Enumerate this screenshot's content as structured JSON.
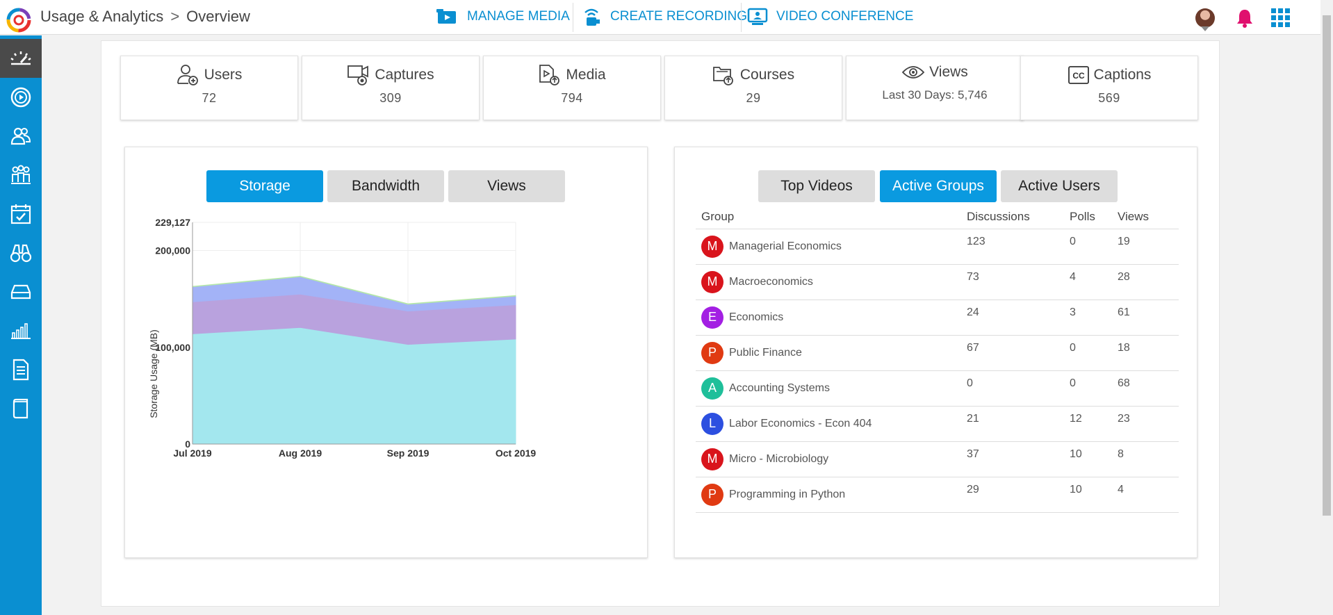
{
  "header": {
    "breadcrumb": [
      "Usage & Analytics",
      "Overview"
    ],
    "actions": [
      {
        "label": "MANAGE MEDIA",
        "icon": "media-icon"
      },
      {
        "label": "CREATE RECORDING",
        "icon": "recording-icon"
      },
      {
        "label": "VIDEO CONFERENCE",
        "icon": "video-conference-icon"
      }
    ]
  },
  "stats": [
    {
      "label": "Users",
      "value": "72",
      "icon": "user-add-icon"
    },
    {
      "label": "Captures",
      "value": "309",
      "icon": "capture-icon"
    },
    {
      "label": "Media",
      "value": "794",
      "icon": "media-file-icon"
    },
    {
      "label": "Courses",
      "value": "29",
      "icon": "courses-icon"
    },
    {
      "label": "Views",
      "value": "Last 30 Days: 5,746",
      "icon": "eye-icon"
    },
    {
      "label": "Captions",
      "value": "569",
      "icon": "cc-icon"
    }
  ],
  "usage_tabs": [
    {
      "label": "Storage",
      "active": true
    },
    {
      "label": "Bandwidth",
      "active": false
    },
    {
      "label": "Views",
      "active": false
    }
  ],
  "activity_tabs": [
    {
      "label": "Top Videos",
      "active": false
    },
    {
      "label": "Active Groups",
      "active": true
    },
    {
      "label": "Active Users",
      "active": false
    }
  ],
  "groups": {
    "columns": [
      "Group",
      "Discussions",
      "Polls",
      "Views"
    ],
    "rows": [
      {
        "initial": "M",
        "color": "#d9141c",
        "name": "Managerial Economics",
        "discussions": "123",
        "polls": "0",
        "views": "19"
      },
      {
        "initial": "M",
        "color": "#d9141c",
        "name": "Macroeconomics",
        "discussions": "73",
        "polls": "4",
        "views": "28"
      },
      {
        "initial": "E",
        "color": "#a31fe3",
        "name": "Economics",
        "discussions": "24",
        "polls": "3",
        "views": "61"
      },
      {
        "initial": "P",
        "color": "#e03a12",
        "name": "Public Finance",
        "discussions": "67",
        "polls": "0",
        "views": "18"
      },
      {
        "initial": "A",
        "color": "#1fbf9a",
        "name": "Accounting Systems",
        "discussions": "0",
        "polls": "0",
        "views": "68"
      },
      {
        "initial": "L",
        "color": "#2c4fe0",
        "name": "Labor Economics - Econ 404",
        "discussions": "21",
        "polls": "12",
        "views": "23"
      },
      {
        "initial": "M",
        "color": "#d9141c",
        "name": "Micro - Microbiology",
        "discussions": "37",
        "polls": "10",
        "views": "8"
      },
      {
        "initial": "P",
        "color": "#e03a12",
        "name": "Programming in Python",
        "discussions": "29",
        "polls": "10",
        "views": "4"
      }
    ]
  },
  "chart_data": {
    "type": "area",
    "stacked": true,
    "categories": [
      "Jul 2019",
      "Aug 2019",
      "Sep 2019",
      "Oct 2019"
    ],
    "series": [
      {
        "values": [
          114000,
          120500,
          103000,
          108500
        ],
        "color": "#a3e7ee"
      },
      {
        "values": [
          33000,
          34500,
          34500,
          35500
        ],
        "color": "#b9a2de"
      },
      {
        "values": [
          15500,
          18000,
          7000,
          9000
        ],
        "color": "#a3b3f7"
      },
      {
        "values": [
          500,
          500,
          500,
          500
        ],
        "color": "#b5e8a8"
      }
    ],
    "ylabel": "Storage Usage (MB)",
    "yticks": [
      "0",
      "100,000",
      "200,000",
      "229,127"
    ],
    "ytick_values": [
      0,
      100000,
      200000,
      229127
    ],
    "ylim": [
      0,
      229127
    ],
    "grid": true
  }
}
